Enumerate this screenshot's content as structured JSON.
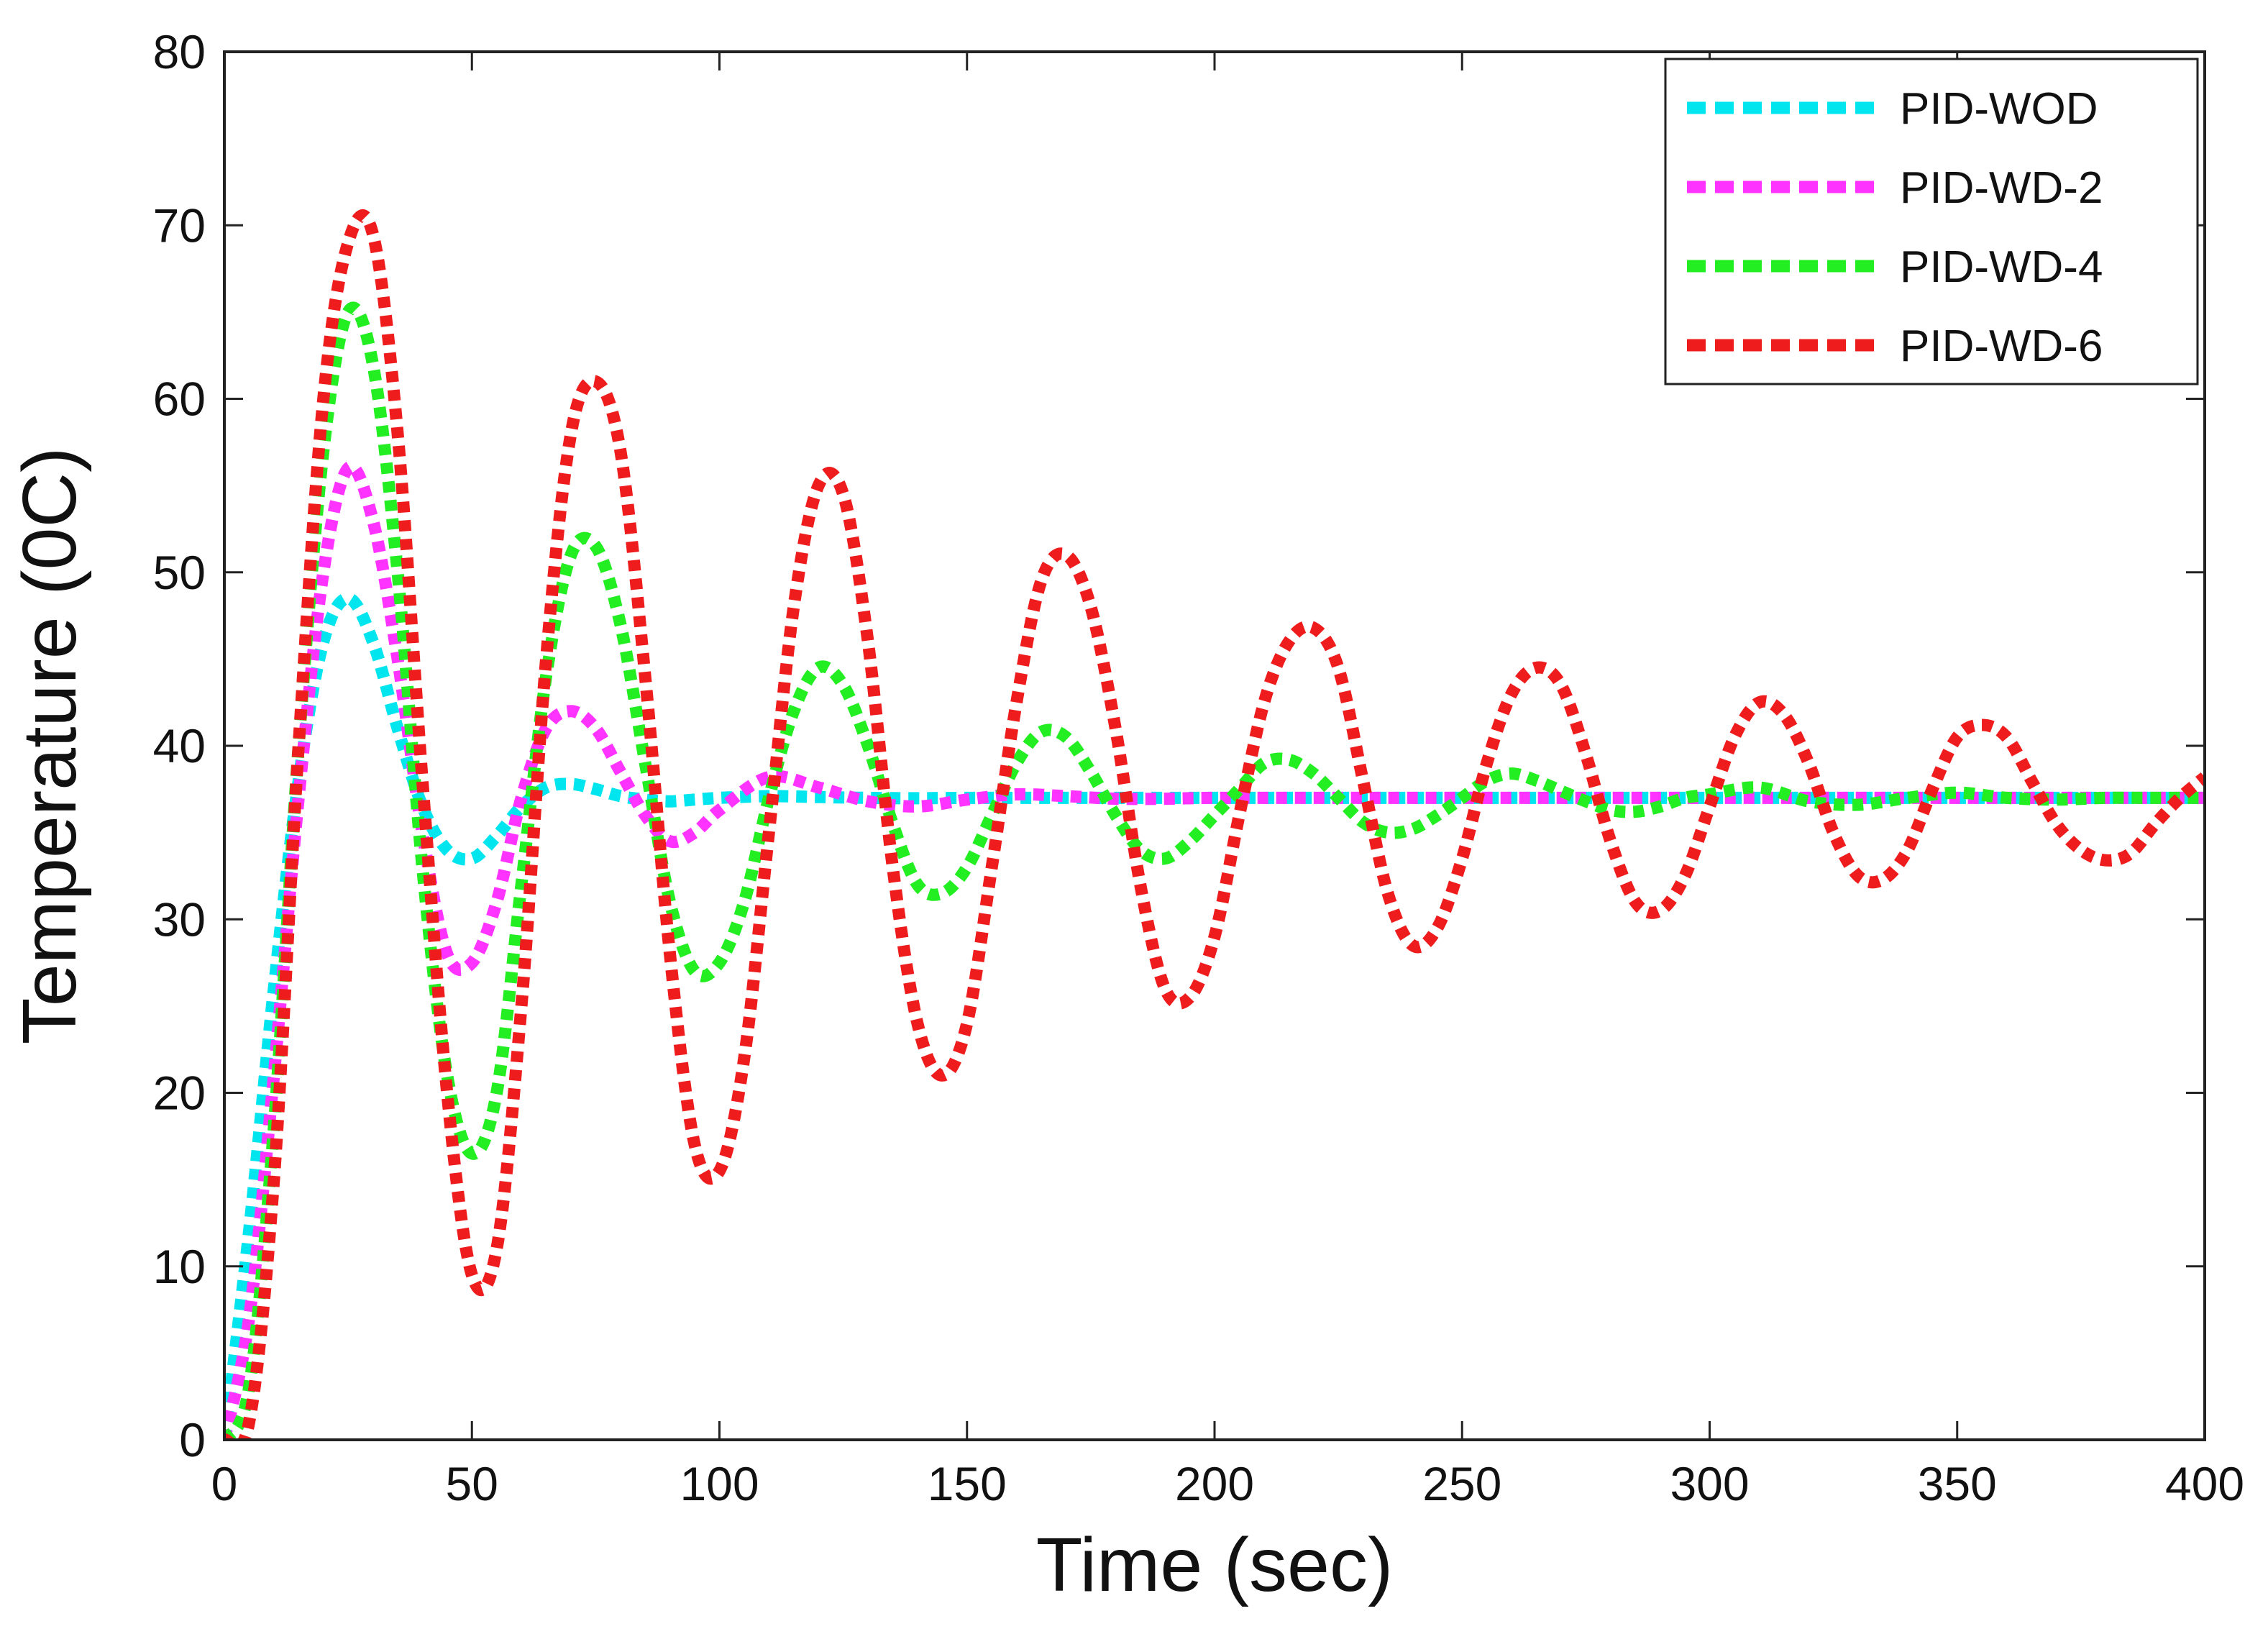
{
  "chart_data": {
    "type": "line",
    "title": "",
    "xlabel": "Time (sec)",
    "ylabel": "Temperature (0C)",
    "xlim": [
      0,
      400
    ],
    "ylim": [
      0,
      80
    ],
    "xticks": [
      0,
      50,
      100,
      150,
      200,
      250,
      300,
      350,
      400
    ],
    "yticks": [
      0,
      10,
      20,
      30,
      40,
      50,
      60,
      70,
      80
    ],
    "grid": false,
    "legend_position": "top-right",
    "line_style": "dotted",
    "series": [
      {
        "name": "PID-WOD",
        "color": "#00e5ee",
        "x": [
          0,
          5,
          10,
          15,
          20,
          25,
          30,
          35,
          40,
          45,
          50,
          55,
          60,
          65,
          70,
          75,
          80,
          85,
          90,
          95,
          100,
          110,
          120,
          130,
          140,
          150,
          175,
          200,
          250,
          300,
          350,
          400
        ],
        "y": [
          0,
          12,
          26,
          38,
          46,
          48.5,
          46,
          41,
          36.5,
          34,
          33.5,
          34.8,
          36.5,
          37.6,
          37.8,
          37.5,
          37.1,
          36.9,
          36.8,
          36.9,
          37,
          37.1,
          37.05,
          37,
          36.98,
          37,
          37,
          37,
          37,
          37,
          37,
          37
        ]
      },
      {
        "name": "PID-WD-2",
        "color": "#ff33ff",
        "x": [
          0,
          5,
          10,
          15,
          20,
          25,
          30,
          35,
          40,
          45,
          50,
          55,
          60,
          65,
          70,
          75,
          80,
          85,
          90,
          95,
          100,
          110,
          120,
          130,
          140,
          150,
          160,
          170,
          180,
          190,
          200,
          225,
          250,
          300,
          350,
          400
        ],
        "y": [
          0,
          7,
          21,
          37,
          50,
          56,
          53,
          45,
          35,
          28,
          27.5,
          31,
          37,
          41,
          42,
          41,
          38.5,
          36,
          34.5,
          35,
          36.3,
          38.2,
          37.6,
          36.8,
          36.5,
          36.9,
          37.2,
          37.1,
          36.95,
          36.95,
          37,
          37,
          37,
          37,
          37,
          37
        ]
      },
      {
        "name": "PID-WD-4",
        "color": "#22ee22",
        "x": [
          0,
          5,
          10,
          15,
          20,
          25,
          30,
          35,
          40,
          45,
          50,
          55,
          60,
          65,
          70,
          75,
          80,
          85,
          90,
          95,
          100,
          105,
          110,
          115,
          120,
          125,
          130,
          135,
          140,
          145,
          150,
          155,
          160,
          165,
          170,
          175,
          180,
          185,
          190,
          195,
          200,
          205,
          210,
          215,
          220,
          225,
          230,
          235,
          240,
          245,
          250,
          255,
          260,
          265,
          270,
          275,
          280,
          285,
          290,
          295,
          300,
          310,
          320,
          330,
          340,
          350,
          360,
          370,
          380,
          390,
          400
        ],
        "y": [
          0,
          3,
          18,
          40,
          57,
          65,
          62,
          50,
          33,
          21,
          16.5,
          20,
          32,
          44,
          51,
          51.5,
          47,
          39,
          31,
          27,
          27.5,
          31,
          37,
          42,
          44.5,
          43.5,
          40,
          35.5,
          32,
          31.5,
          33,
          36,
          39,
          40.8,
          40.5,
          38.5,
          36,
          34,
          33.5,
          34.5,
          36,
          37.5,
          39,
          39.2,
          38.4,
          37,
          35.6,
          35,
          35.2,
          36,
          37,
          38,
          38.4,
          38,
          37.4,
          36.8,
          36.3,
          36.2,
          36.5,
          37,
          37.2,
          37.6,
          36.8,
          36.6,
          37,
          37.3,
          37,
          36.9,
          37,
          37,
          37
        ]
      },
      {
        "name": "PID-WD-6",
        "color": "#ee1c1c",
        "x": [
          0,
          5,
          10,
          15,
          20,
          25,
          30,
          35,
          40,
          45,
          50,
          55,
          60,
          65,
          70,
          75,
          80,
          85,
          90,
          95,
          100,
          105,
          110,
          115,
          120,
          125,
          130,
          135,
          140,
          145,
          150,
          155,
          160,
          165,
          170,
          175,
          180,
          185,
          190,
          195,
          200,
          205,
          210,
          215,
          220,
          225,
          230,
          235,
          240,
          245,
          250,
          255,
          260,
          265,
          270,
          275,
          280,
          285,
          290,
          295,
          300,
          305,
          310,
          315,
          320,
          325,
          330,
          335,
          340,
          345,
          350,
          355,
          360,
          365,
          370,
          375,
          380,
          385,
          390,
          395,
          400
        ],
        "y": [
          0,
          1,
          15,
          40,
          60,
          69,
          69.5,
          58,
          38,
          20,
          9.5,
          11,
          25,
          45,
          58,
          61,
          57,
          44,
          28,
          17,
          15.5,
          22,
          35,
          48,
          55,
          54.5,
          46,
          33,
          24,
          21,
          24,
          33,
          42.5,
          49.5,
          51,
          48,
          41,
          32,
          26,
          25.5,
          29,
          36,
          42.5,
          46,
          46.8,
          44.5,
          38,
          31.5,
          28.5,
          29.5,
          33.5,
          39,
          43,
          44.5,
          43.5,
          39.5,
          34.5,
          31,
          30.5,
          32.5,
          36.5,
          40.5,
          42.5,
          41.8,
          39,
          35,
          32.5,
          32.3,
          34,
          37.5,
          40.5,
          41.2,
          40.5,
          38,
          35.5,
          34,
          33.4,
          33.8,
          35.5,
          37,
          38.2
        ]
      }
    ]
  }
}
